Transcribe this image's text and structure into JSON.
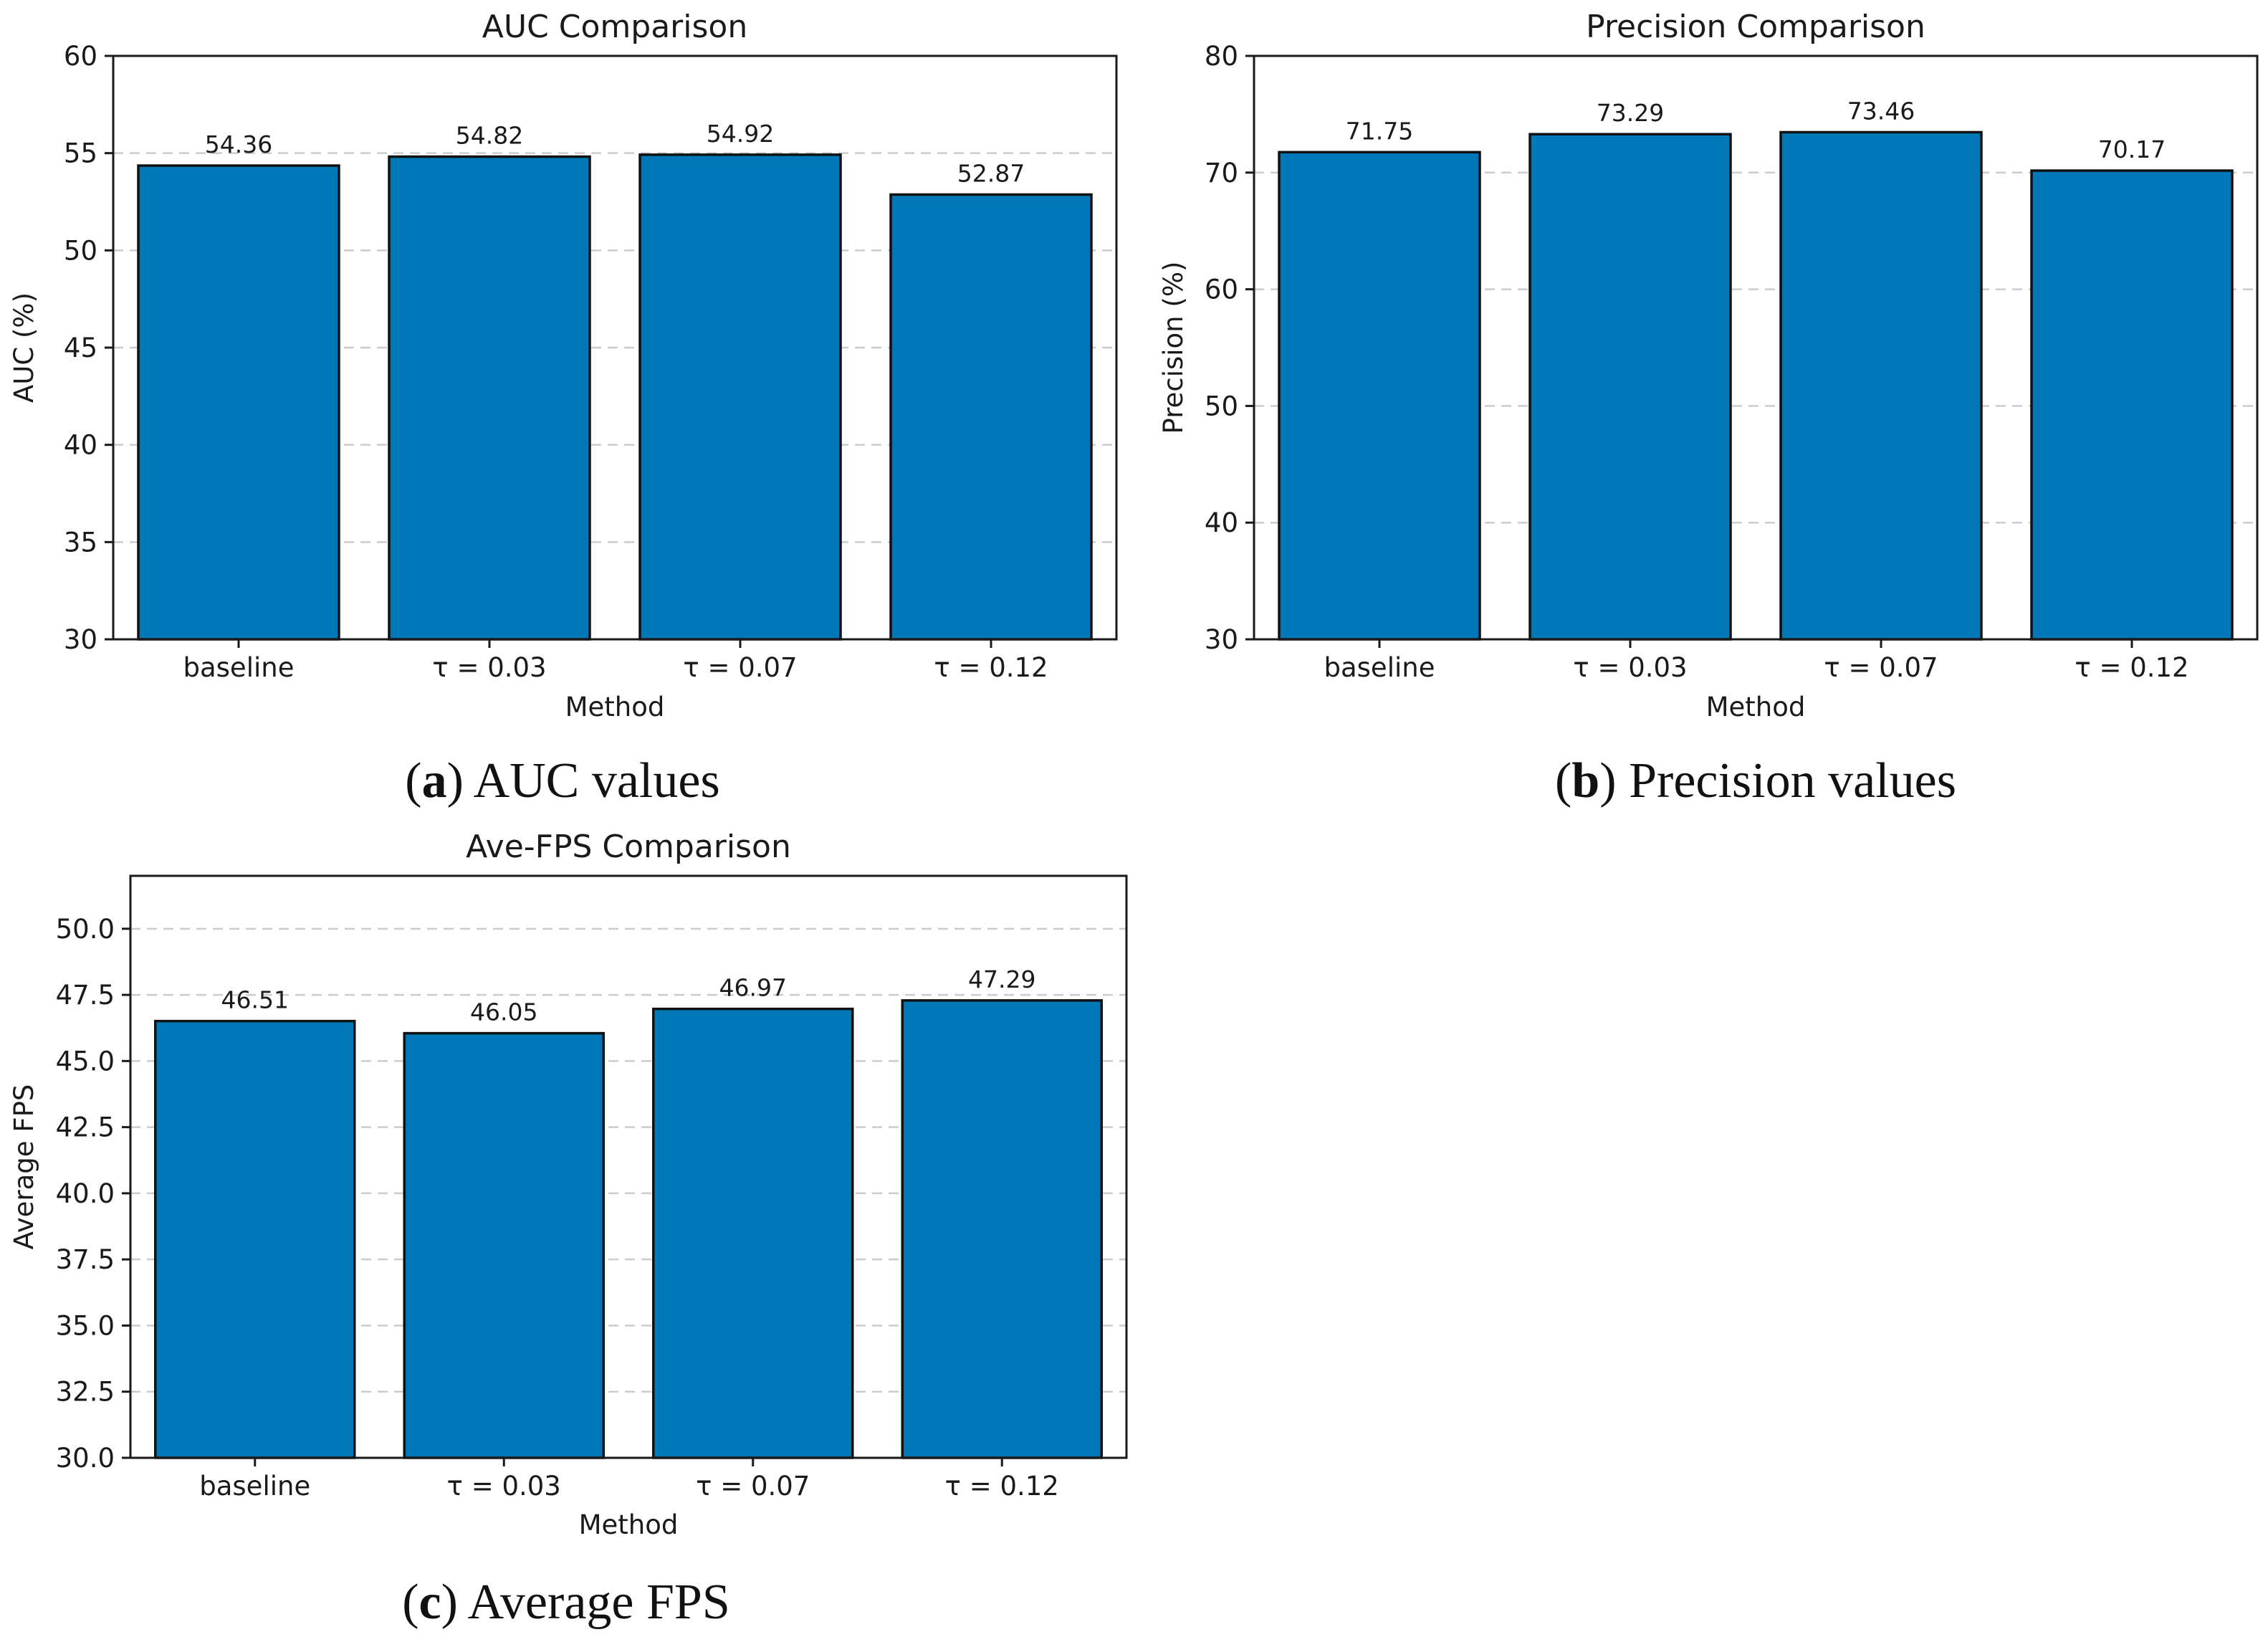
{
  "colors": {
    "bar": "#0077b6",
    "edge": "#111111",
    "grid": "#cccccc"
  },
  "chart_data": [
    {
      "type": "bar",
      "title": "AUC Comparison",
      "xlabel": "Method",
      "ylabel": "AUC (%)",
      "categories": [
        "baseline",
        "τ = 0.03",
        "τ = 0.07",
        "τ = 0.12"
      ],
      "values": [
        54.36,
        54.82,
        54.92,
        52.87
      ],
      "value_labels": [
        "54.36",
        "54.82",
        "54.92",
        "52.87"
      ],
      "ylim": [
        30,
        60
      ],
      "yticks": [
        30,
        35,
        40,
        45,
        50,
        55,
        60
      ],
      "ytick_labels": [
        "30",
        "35",
        "40",
        "45",
        "50",
        "55",
        "60"
      ],
      "grid": "y-dashed",
      "caption_letter": "a",
      "caption_text": "AUC values"
    },
    {
      "type": "bar",
      "title": "Precision Comparison",
      "xlabel": "Method",
      "ylabel": "Precision (%)",
      "categories": [
        "baseline",
        "τ = 0.03",
        "τ = 0.07",
        "τ = 0.12"
      ],
      "values": [
        71.75,
        73.29,
        73.46,
        70.17
      ],
      "value_labels": [
        "71.75",
        "73.29",
        "73.46",
        "70.17"
      ],
      "ylim": [
        30,
        80
      ],
      "yticks": [
        30,
        40,
        50,
        60,
        70,
        80
      ],
      "ytick_labels": [
        "30",
        "40",
        "50",
        "60",
        "70",
        "80"
      ],
      "grid": "y-dashed",
      "caption_letter": "b",
      "caption_text": "Precision values"
    },
    {
      "type": "bar",
      "title": "Ave-FPS Comparison",
      "xlabel": "Method",
      "ylabel": "Average FPS",
      "categories": [
        "baseline",
        "τ = 0.03",
        "τ = 0.07",
        "τ = 0.12"
      ],
      "values": [
        46.51,
        46.05,
        46.97,
        47.29
      ],
      "value_labels": [
        "46.51",
        "46.05",
        "46.97",
        "47.29"
      ],
      "ylim": [
        30,
        52
      ],
      "yticks": [
        30,
        32.5,
        35,
        37.5,
        40,
        42.5,
        45,
        47.5,
        50
      ],
      "ytick_labels": [
        "30.0",
        "32.5",
        "35.0",
        "37.5",
        "40.0",
        "42.5",
        "45.0",
        "47.5",
        "50.0"
      ],
      "grid": "y-dashed",
      "caption_letter": "c",
      "caption_text": "Average FPS"
    }
  ]
}
